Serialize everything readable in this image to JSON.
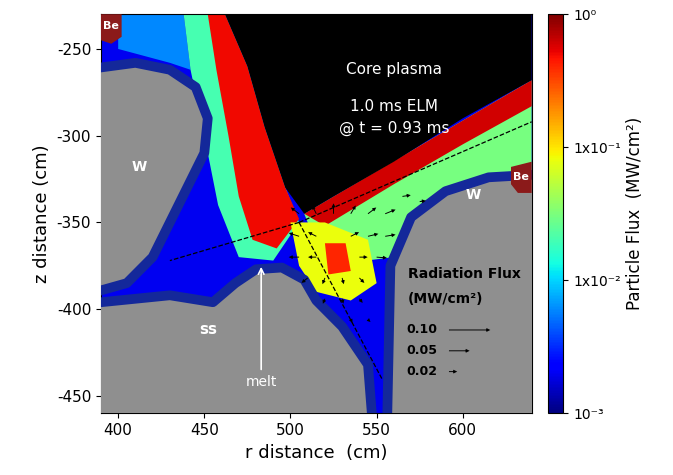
{
  "chart_data": {
    "type": "flux_map",
    "x_label": "r distance  (cm)",
    "y_label": "z distance (cm)",
    "xlim": [
      390,
      640
    ],
    "ylim": [
      -460,
      -230
    ],
    "xticks": [
      400,
      450,
      500,
      550,
      600
    ],
    "yticks": [
      -450,
      -400,
      -350,
      -300,
      -250
    ],
    "colorbar": {
      "label": "Particle Flux  (MW/cm²)",
      "range": [
        0.001,
        1
      ],
      "log": true,
      "ticks": [
        {
          "value": 1,
          "label": "10⁰"
        },
        {
          "value": 0.1,
          "label": "1x10⁻¹"
        },
        {
          "value": 0.01,
          "label": "1x10⁻²"
        },
        {
          "value": 0.001,
          "label": "10⁻³"
        }
      ]
    },
    "flux_regions": [
      {
        "value": 0.002,
        "r": [
          390,
          640,
          640,
          390
        ],
        "z": [
          -230,
          -230,
          -460,
          -460
        ]
      },
      {
        "value": 0.006,
        "r": [
          400,
          438,
          442,
          430,
          400
        ],
        "z": [
          -230,
          -230,
          -262,
          -258,
          -250
        ]
      },
      {
        "value": 0.02,
        "r": [
          438,
          462,
          475,
          485,
          497,
          505,
          490,
          470,
          458,
          450,
          442
        ],
        "z": [
          -230,
          -230,
          -260,
          -295,
          -330,
          -350,
          -372,
          -370,
          -340,
          -300,
          -262
        ]
      },
      {
        "value": 0.5,
        "r": [
          452,
          462,
          475,
          485,
          497,
          505,
          492,
          478,
          470,
          464,
          457
        ],
        "z": [
          -230,
          -230,
          -260,
          -295,
          -330,
          -348,
          -365,
          -360,
          -335,
          -300,
          -262
        ]
      },
      {
        "value": 0.03,
        "r": [
          508,
          640,
          640,
          615,
          590,
          570,
          560,
          520
        ],
        "z": [
          -345,
          -268,
          -320,
          -322,
          -330,
          -345,
          -370,
          -375
        ]
      },
      {
        "value": 0.6,
        "r": [
          508,
          640,
          640,
          600,
          560,
          520
        ],
        "z": [
          -345,
          -268,
          -283,
          -305,
          -328,
          -352
        ]
      },
      {
        "value": 0.08,
        "r": [
          500,
          520,
          545,
          550,
          535,
          515,
          505
        ],
        "z": [
          -350,
          -350,
          -360,
          -385,
          -395,
          -390,
          -375
        ]
      },
      {
        "value": 0.4,
        "r": [
          520,
          532,
          535,
          522
        ],
        "z": [
          -362,
          -362,
          -378,
          -380
        ]
      }
    ],
    "radiation_flux": {
      "title": "Radiation Flux",
      "unit": "(MW/cm²)",
      "arrows": [
        [
          505,
          -345,
          -0.02,
          0.015
        ],
        [
          515,
          -345,
          -0.01,
          0.02
        ],
        [
          525,
          -345,
          0,
          0.025
        ],
        [
          535,
          -345,
          0.012,
          0.02
        ],
        [
          545,
          -345,
          0.02,
          0.015
        ],
        [
          555,
          -345,
          0.025,
          0.01
        ],
        [
          505,
          -358,
          -0.025,
          0.008
        ],
        [
          515,
          -358,
          -0.02,
          0.01
        ],
        [
          535,
          -358,
          0.02,
          0.01
        ],
        [
          545,
          -358,
          0.025,
          0.006
        ],
        [
          555,
          -358,
          0.025,
          0.004
        ],
        [
          505,
          -370,
          -0.025,
          0
        ],
        [
          515,
          -370,
          -0.02,
          0
        ],
        [
          540,
          -370,
          0.02,
          0
        ],
        [
          550,
          -370,
          0.025,
          -0.002
        ],
        [
          510,
          -382,
          -0.015,
          -0.012
        ],
        [
          520,
          -382,
          -0.006,
          -0.015
        ],
        [
          530,
          -382,
          0.004,
          -0.015
        ],
        [
          540,
          -382,
          0.012,
          -0.012
        ],
        [
          520,
          -394,
          -0.005,
          -0.012
        ],
        [
          530,
          -394,
          0.003,
          -0.012
        ],
        [
          540,
          -394,
          0.008,
          -0.01
        ],
        [
          535,
          -406,
          0.004,
          -0.008
        ],
        [
          545,
          -406,
          0.006,
          -0.006
        ],
        [
          565,
          -335,
          0.02,
          0.003
        ],
        [
          575,
          -338,
          0.015,
          0.002
        ]
      ],
      "key": [
        {
          "value": 0.1,
          "label": "0.10"
        },
        {
          "value": 0.05,
          "label": "0.05"
        },
        {
          "value": 0.02,
          "label": "0.02"
        }
      ]
    },
    "labels": {
      "core": "Core plasma",
      "elm": "1.0 ms ELM",
      "time": "@ t = 0.93 ms",
      "tungsten": "W",
      "steel": "ss",
      "beryllium": "Be",
      "melt": "melt"
    }
  }
}
